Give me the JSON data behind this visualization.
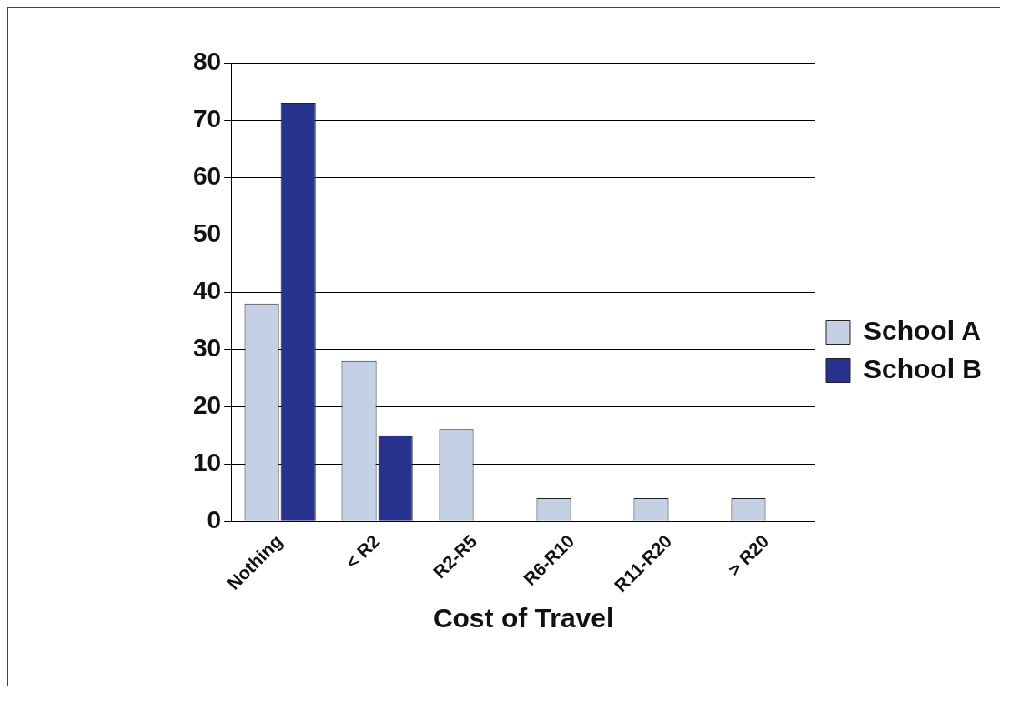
{
  "chart_data": {
    "type": "bar",
    "xlabel": "Cost of Travel",
    "categories": [
      "Nothing",
      "< R2",
      "R2-R5",
      "R6-R10",
      "R11-R20",
      "> R20"
    ],
    "series": [
      {
        "name": "School A",
        "color": "#c4d0e4",
        "values": [
          38,
          28,
          16,
          4,
          4,
          4
        ]
      },
      {
        "name": "School B",
        "color": "#28328f",
        "values": [
          73,
          15,
          0,
          0,
          0,
          0
        ]
      }
    ],
    "ylim": [
      0,
      80
    ],
    "yticks": [
      0,
      10,
      20,
      30,
      40,
      50,
      60,
      70,
      80
    ],
    "grid": "y",
    "legend": "right"
  }
}
